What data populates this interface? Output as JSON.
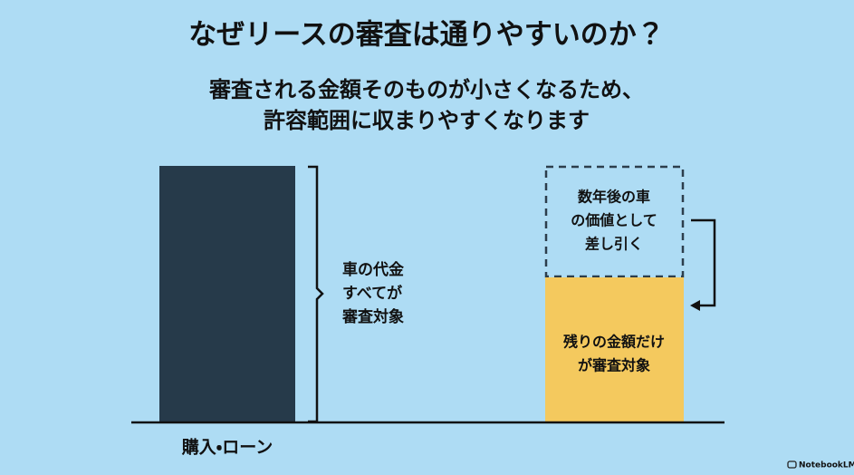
{
  "header": {
    "title": "なぜリースの審査は通りやすいのか？",
    "subtitle": [
      "審査される金額そのものが小さくなるため、",
      "許容範囲に収まりやすくなります"
    ]
  },
  "left": {
    "label": "購入・ローン",
    "bracket_note": [
      "車の代金",
      "すべてが",
      "審査対象"
    ]
  },
  "right": {
    "deducted": [
      "数年後の車",
      "の価値として",
      "差し引く"
    ],
    "remaining": [
      "残りの金額だけ",
      "が審査対象"
    ]
  },
  "footer": {
    "brand": "NotebookLM"
  }
}
